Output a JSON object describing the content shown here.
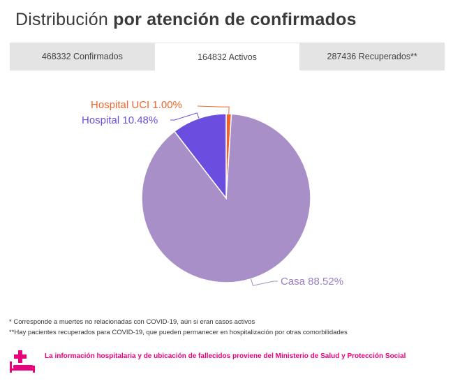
{
  "header": {
    "title_regular": "Distribución",
    "title_bold": "por atención de confirmados"
  },
  "tabs": [
    {
      "label": "468332 Confirmados",
      "active": false
    },
    {
      "label": "164832 Activos",
      "active": true
    },
    {
      "label": "287436 Recuperados**",
      "active": false
    }
  ],
  "chart_data": {
    "type": "pie",
    "slices": [
      {
        "label": "Casa 88.52%",
        "value": 88.52,
        "color": "#a98fc8"
      },
      {
        "label": "Hospital 10.48%",
        "value": 10.48,
        "color": "#6b4de0"
      },
      {
        "label": "Hospital UCI 1.00%",
        "value": 1.0,
        "color": "#f0652a"
      }
    ],
    "start": "12 o'clock, clockwise: Hospital UCI, Casa, Hospital"
  },
  "notes": {
    "line1": "* Corresponde a muertes no relacionadas con COVID-19, aún si eran casos activos",
    "line2": "**Hay pacientes recuperados para COVID-19, que pueden permanecer en hospitalización por otras comorbilidades"
  },
  "info": {
    "text": "La información hospitalaria y de ubicación de fallecidos proviene del Ministerio de Salud y Protección Social",
    "icon": "hospital-bed-icon",
    "color": "#e8007c"
  }
}
